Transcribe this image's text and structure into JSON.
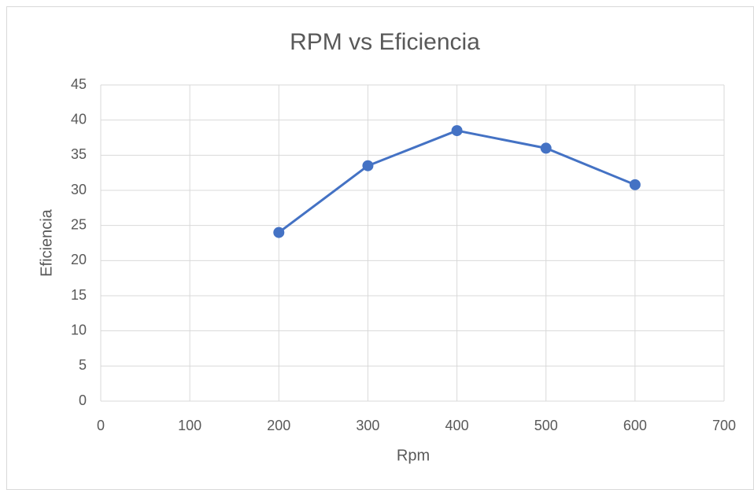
{
  "chart_data": {
    "type": "line",
    "title": "RPM vs Eficiencia",
    "x_label": "Rpm",
    "y_label": "Eficiencia",
    "x": [
      200,
      300,
      400,
      500,
      600
    ],
    "values": [
      24,
      33.5,
      38.5,
      36,
      30.8
    ],
    "color": "#4472c4",
    "markers": true,
    "xlim": [
      0,
      700
    ],
    "xticks": [
      0,
      100,
      200,
      300,
      400,
      500,
      600,
      700
    ],
    "ylim": [
      0,
      45
    ],
    "yticks": [
      0,
      5,
      10,
      15,
      20,
      25,
      30,
      35,
      40,
      45
    ],
    "grid": true
  }
}
